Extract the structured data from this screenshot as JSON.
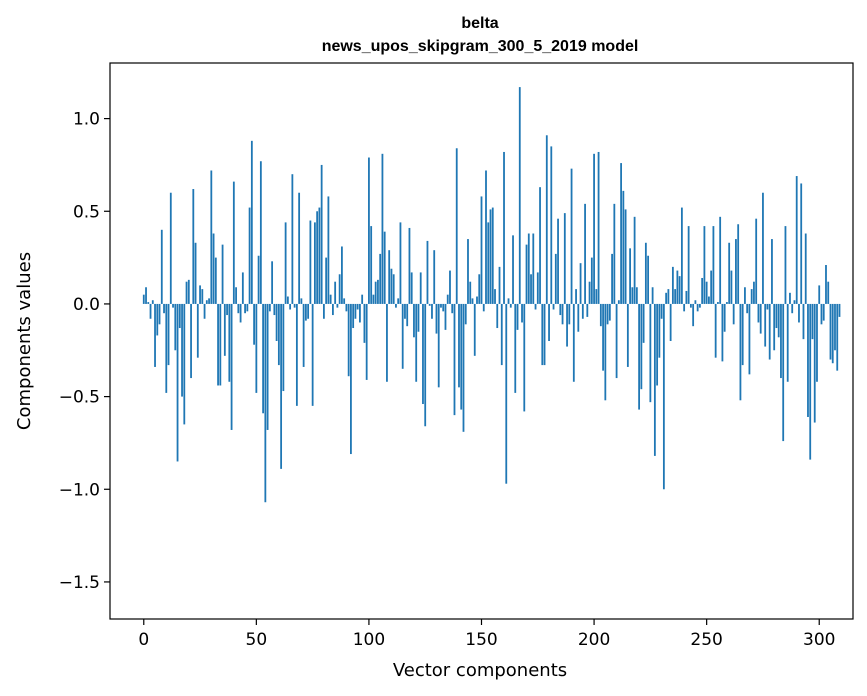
{
  "chart_data": {
    "type": "bar",
    "title_line1": "belta",
    "title_line2": "news_upos_skipgram_300_5_2019 model",
    "xlabel": "Vector components",
    "ylabel": "Components values",
    "xlim": [
      -15,
      315
    ],
    "ylim": [
      -1.7,
      1.3
    ],
    "xticks": [
      0,
      50,
      100,
      150,
      200,
      250,
      300
    ],
    "xtick_labels": [
      "0",
      "50",
      "100",
      "150",
      "200",
      "250",
      "300"
    ],
    "yticks": [
      -1.5,
      -1.0,
      -0.5,
      0.0,
      0.5,
      1.0
    ],
    "ytick_labels": [
      "−1.5",
      "−1.0",
      "−0.5",
      "0.0",
      "0.5",
      "1.0"
    ],
    "color": "#1f77b4",
    "values": [
      0.05,
      0.09,
      0.01,
      -0.08,
      0.02,
      -0.34,
      -0.17,
      -0.11,
      0.4,
      -0.05,
      -0.48,
      -0.33,
      0.6,
      -0.02,
      -0.25,
      -0.85,
      -0.13,
      -0.5,
      -0.65,
      0.12,
      0.13,
      -0.4,
      0.62,
      0.33,
      -0.29,
      0.1,
      0.08,
      -0.08,
      0.02,
      0.03,
      0.72,
      0.38,
      0.25,
      -0.44,
      -0.44,
      0.32,
      -0.28,
      -0.06,
      -0.42,
      -0.68,
      0.66,
      0.09,
      -0.05,
      -0.1,
      0.17,
      -0.05,
      -0.04,
      0.52,
      0.88,
      -0.22,
      -0.48,
      0.26,
      0.77,
      -0.59,
      -1.07,
      -0.68,
      -0.04,
      0.23,
      -0.06,
      -0.2,
      -0.33,
      -0.89,
      -0.47,
      0.44,
      0.04,
      -0.03,
      0.7,
      -0.02,
      -0.55,
      0.6,
      0.03,
      -0.34,
      -0.09,
      -0.08,
      0.45,
      -0.55,
      0.44,
      0.5,
      0.52,
      0.75,
      -0.08,
      0.25,
      0.58,
      0.05,
      -0.06,
      0.12,
      -0.02,
      0.16,
      0.31,
      0.03,
      -0.04,
      -0.39,
      -0.81,
      -0.13,
      -0.08,
      -0.03,
      -0.1,
      0.05,
      -0.21,
      -0.41,
      0.79,
      0.42,
      0.05,
      0.12,
      0.13,
      0.27,
      0.81,
      0.39,
      -0.42,
      0.29,
      0.19,
      0.16,
      -0.02,
      0.03,
      0.44,
      -0.35,
      -0.08,
      -0.12,
      0.41,
      0.17,
      -0.18,
      -0.42,
      -0.15,
      0.17,
      -0.54,
      -0.66,
      0.34,
      -0.01,
      -0.08,
      0.29,
      -0.16,
      -0.45,
      -0.02,
      -0.04,
      -0.14,
      0.05,
      0.18,
      -0.05,
      -0.6,
      0.84,
      -0.45,
      -0.57,
      -0.69,
      -0.11,
      0.35,
      0.12,
      0.03,
      -0.28,
      0.04,
      0.16,
      0.58,
      -0.04,
      0.72,
      0.44,
      0.51,
      0.52,
      0.08,
      -0.13,
      0.2,
      -0.33,
      0.82,
      -0.97,
      0.03,
      -0.02,
      0.37,
      -0.48,
      -0.14,
      1.17,
      -0.1,
      -0.58,
      0.32,
      0.38,
      0.16,
      0.38,
      -0.03,
      0.17,
      0.63,
      -0.33,
      -0.33,
      0.91,
      -0.2,
      0.85,
      -0.03,
      0.27,
      0.46,
      -0.06,
      -0.11,
      0.49,
      -0.23,
      -0.11,
      0.73,
      -0.42,
      0.08,
      -0.15,
      0.22,
      -0.08,
      0.54,
      -0.07,
      0.12,
      0.25,
      0.81,
      0.08,
      0.82,
      -0.12,
      -0.36,
      -0.52,
      -0.11,
      -0.09,
      0.27,
      0.54,
      -0.4,
      0.02,
      0.76,
      0.61,
      0.51,
      -0.34,
      0.3,
      0.09,
      0.47,
      0.09,
      -0.57,
      -0.46,
      -0.21,
      0.33,
      0.26,
      -0.53,
      0.09,
      -0.82,
      -0.44,
      -0.29,
      -0.08,
      -1.0,
      0.06,
      0.08,
      -0.2,
      0.2,
      0.08,
      0.18,
      0.15,
      0.52,
      -0.04,
      0.07,
      0.42,
      -0.02,
      -0.12,
      0.02,
      -0.04,
      -0.02,
      0.14,
      0.42,
      0.12,
      0.04,
      0.18,
      0.42,
      -0.29,
      0.01,
      0.47,
      -0.31,
      -0.15,
      0.01,
      0.33,
      0.18,
      -0.11,
      0.35,
      0.43,
      -0.52,
      -0.33,
      0.09,
      -0.05,
      -0.38,
      0.08,
      0.12,
      0.46,
      -0.1,
      -0.16,
      0.6,
      -0.23,
      -0.03,
      -0.3,
      0.35,
      -0.25,
      -0.13,
      -0.18,
      -0.4,
      -0.74,
      0.42,
      -0.42,
      0.06,
      -0.05,
      0.02,
      0.69,
      -0.1,
      0.65,
      -0.19,
      0.38,
      -0.61,
      -0.84,
      -0.19,
      -0.64,
      -0.42,
      0.1,
      -0.11,
      -0.09,
      0.21,
      0.12,
      -0.3,
      -0.32,
      -0.25,
      -0.36,
      -0.07
    ]
  }
}
